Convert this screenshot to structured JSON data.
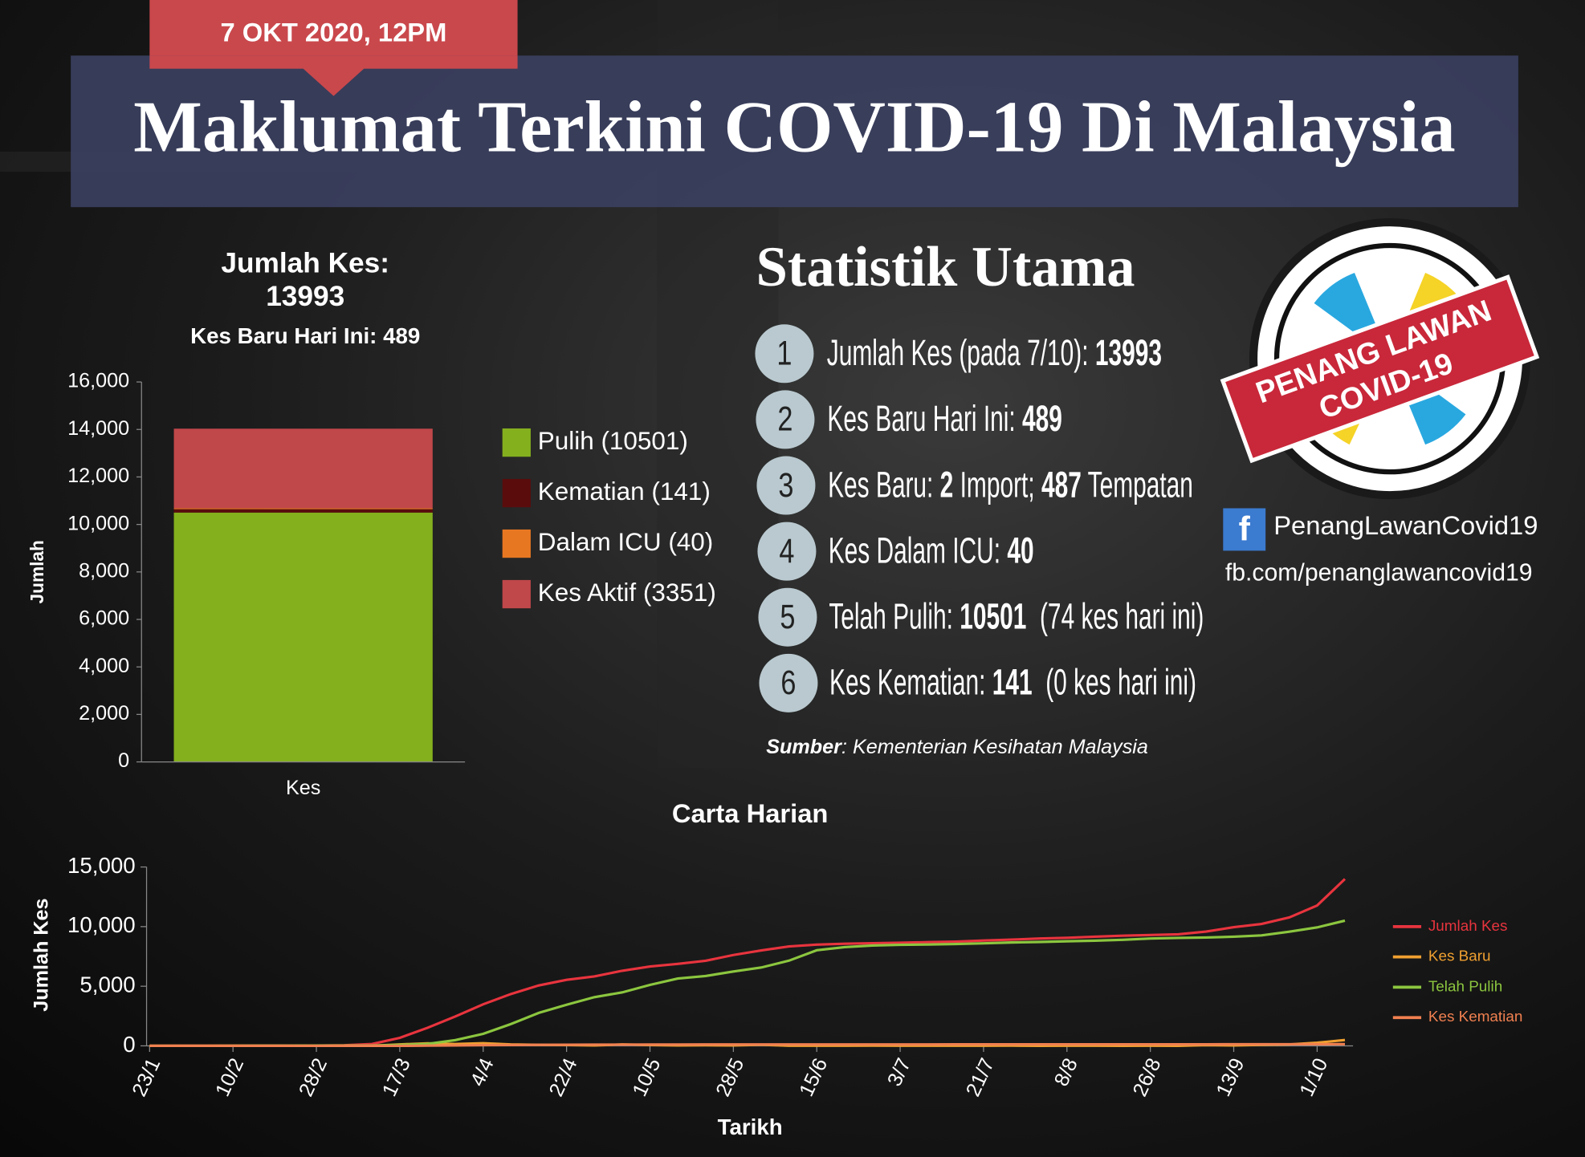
{
  "header": {
    "date": "7 OKT 2020, 12PM",
    "title": "Maklumat Terkini COVID-19 Di Malaysia"
  },
  "chart_data": [
    {
      "type": "bar",
      "stacked": true,
      "title": [
        "Jumlah Kes:",
        "13993"
      ],
      "subtitle": "Kes Baru Hari Ini: 489",
      "categories": [
        "Kes"
      ],
      "ylabel": "Jumlah",
      "ylim": [
        0,
        16000
      ],
      "yticks": [
        0,
        {
          "value": 2000,
          "label": "2,000"
        },
        {
          "value": 4000,
          "label": "4,000"
        },
        {
          "value": 6000,
          "label": "6,000"
        },
        {
          "value": 8000,
          "label": "8,000"
        },
        {
          "value": 10000,
          "label": "10,000"
        },
        {
          "value": 12000,
          "label": "12,000"
        },
        {
          "value": 14000,
          "label": "14,000"
        },
        {
          "value": 16000,
          "label": "16,000"
        }
      ],
      "legend": "right",
      "series": [
        {
          "name": "Pulih (10501)",
          "color": "#84b01e",
          "values": [
            10501
          ]
        },
        {
          "name": "Kematian (141)",
          "color": "#5a0c0c",
          "values": [
            141
          ]
        },
        {
          "name": "Dalam ICU (40)",
          "color": "#e87722",
          "values": [
            40
          ]
        },
        {
          "name": "Kes Aktif (3351)",
          "color": "#c0474a",
          "values": [
            3351
          ]
        }
      ]
    },
    {
      "type": "line",
      "title": "Carta Harian",
      "xlabel": "Tarikh",
      "ylabel": "Jumlah Kes",
      "ylim": [
        0,
        15000
      ],
      "yticks": [
        0,
        {
          "value": 5000,
          "label": "5,000"
        },
        {
          "value": 10000,
          "label": "10,000"
        },
        {
          "value": 15000,
          "label": "15,000"
        }
      ],
      "legend": "right",
      "categories": [
        "23/1",
        null,
        null,
        "10/2",
        null,
        null,
        "28/2",
        null,
        null,
        "17/3",
        null,
        null,
        "4/4",
        null,
        null,
        "22/4",
        null,
        null,
        "10/5",
        null,
        null,
        "28/5",
        null,
        null,
        "15/6",
        null,
        null,
        "3/7",
        null,
        null,
        "21/7",
        null,
        null,
        "8/8",
        null,
        null,
        "26/8",
        null,
        null,
        "13/9",
        null,
        null,
        "1/10",
        null
      ],
      "series": [
        {
          "name": "Jumlah Kes",
          "color": "#e8343e",
          "values": [
            0,
            8,
            10,
            18,
            22,
            22,
            25,
            50,
            149,
            673,
            1518,
            2470,
            3483,
            4346,
            5072,
            5532,
            5820,
            6298,
            6656,
            6872,
            7137,
            7619,
            8000,
            8338,
            8494,
            8572,
            8606,
            8643,
            8696,
            8737,
            8831,
            8904,
            8999,
            9063,
            9149,
            9240,
            9296,
            9354,
            9583,
            9946,
            10219,
            10769,
            11771,
            13993
          ]
        },
        {
          "name": "Kes Baru",
          "color": "#f0a030",
          "values": [
            0,
            3,
            0,
            0,
            0,
            0,
            0,
            0,
            10,
            120,
            212,
            150,
            217,
            118,
            85,
            71,
            31,
            122,
            67,
            37,
            47,
            38,
            93,
            7,
            8,
            5,
            13,
            7,
            6,
            6,
            9,
            14,
            1,
            5,
            6,
            4,
            7,
            3,
            62,
            38,
            82,
            115,
            260,
            489
          ]
        },
        {
          "name": "Telah Pulih",
          "color": "#8cc63f",
          "values": [
            0,
            0,
            0,
            7,
            15,
            18,
            22,
            24,
            26,
            75,
            159,
            479,
            1005,
            1830,
            2766,
            3452,
            4087,
            4484,
            5113,
            5646,
            5859,
            6235,
            6570,
            7148,
            8015,
            8283,
            8414,
            8478,
            8497,
            8541,
            8605,
            8667,
            8712,
            8767,
            8824,
            8892,
            9004,
            9047,
            9084,
            9150,
            9260,
            9576,
            9929,
            10501
          ]
        },
        {
          "name": "Kes Kematian",
          "color": "#f08050",
          "values": [
            0,
            0,
            0,
            0,
            0,
            0,
            0,
            0,
            0,
            2,
            14,
            34,
            57,
            67,
            84,
            96,
            100,
            105,
            109,
            112,
            115,
            115,
            118,
            121,
            121,
            121,
            121,
            121,
            122,
            124,
            124,
            125,
            125,
            125,
            125,
            127,
            128,
            128,
            130,
            133,
            133,
            136,
            139,
            141
          ]
        }
      ]
    }
  ],
  "stats": {
    "title": "Statistik Utama",
    "items": [
      {
        "number": "1",
        "parts": [
          {
            "text": "Jumlah Kes (pada 7/10): "
          },
          {
            "text": "13993",
            "bold": true
          }
        ]
      },
      {
        "number": "2",
        "parts": [
          {
            "text": "Kes Baru Hari Ini: "
          },
          {
            "text": "489",
            "bold": true
          }
        ]
      },
      {
        "number": "3",
        "parts": [
          {
            "text": "Kes Baru: "
          },
          {
            "text": "2",
            "bold": true
          },
          {
            "text": " Import; "
          },
          {
            "text": "487",
            "bold": true
          },
          {
            "text": " Tempatan"
          }
        ]
      },
      {
        "number": "4",
        "parts": [
          {
            "text": "Kes Dalam ICU: "
          },
          {
            "text": "40",
            "bold": true
          }
        ]
      },
      {
        "number": "5",
        "parts": [
          {
            "text": "Telah Pulih: "
          },
          {
            "text": "10501",
            "bold": true
          },
          {
            "text": "  (74 kes hari ini)"
          }
        ]
      },
      {
        "number": "6",
        "parts": [
          {
            "text": "Kes Kematian: "
          },
          {
            "text": "141",
            "bold": true
          },
          {
            "text": "  (0 kes hari ini)"
          }
        ]
      }
    ],
    "source_label": "Sumber",
    "source_text": ": Kementerian Kesihatan Malaysia"
  },
  "logo": {
    "line1": "PENANG LAWAN",
    "line2": "COVID-19"
  },
  "social": {
    "icon": "f",
    "page": "PenangLawanCovid19",
    "url": "fb.com/penanglawancovid19"
  }
}
